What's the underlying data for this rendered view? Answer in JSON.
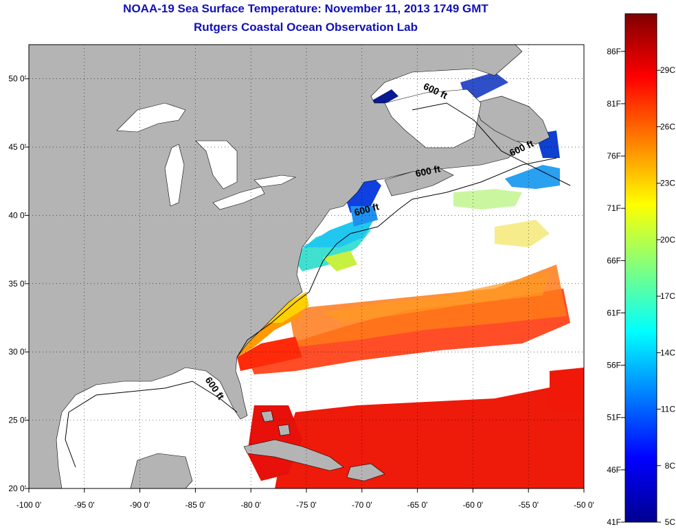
{
  "title": "NOAA-19 Sea Surface Temperature:  November 11, 2013 1749 GMT",
  "subtitle": "Rutgers Coastal Ocean Observation Lab",
  "map": {
    "lon_range": [
      -100,
      -50
    ],
    "lat_range": [
      20,
      52.5
    ],
    "lon_ticks": [
      "-100 0'",
      "-95 0'",
      "-90 0'",
      "-85 0'",
      "-80 0'",
      "-75 0'",
      "-70 0'",
      "-65 0'",
      "-60 0'",
      "-55 0'",
      "-50 0'"
    ],
    "lon_tick_values": [
      -100,
      -95,
      -90,
      -85,
      -80,
      -75,
      -70,
      -65,
      -60,
      -55,
      -50
    ],
    "lat_ticks": [
      "20 0'",
      "25 0'",
      "30 0'",
      "35 0'",
      "40 0'",
      "45 0'",
      "50 0'"
    ],
    "lat_tick_values": [
      20,
      25,
      30,
      35,
      40,
      45,
      50
    ],
    "grid": "dotted",
    "land_color": "#b4b4b4",
    "cloud_color": "#ffffff",
    "isobath_label": "600 ft",
    "isobath_labels": [
      {
        "text": "600 ft",
        "lon": -63.5,
        "lat": 48.9
      },
      {
        "text": "600 ft",
        "lon": -55.5,
        "lat": 44.7
      },
      {
        "text": "600 ft",
        "lon": -64.0,
        "lat": 43.0
      },
      {
        "text": "600 ft",
        "lon": -69.5,
        "lat": 40.2
      },
      {
        "text": "600 ft",
        "lon": -83.5,
        "lat": 27.2
      }
    ]
  },
  "colorbar": {
    "min_c": 5,
    "max_c": 32,
    "f_labels": [
      "86F",
      "81F",
      "76F",
      "71F",
      "66F",
      "61F",
      "56F",
      "51F",
      "46F",
      "41F"
    ],
    "f_values": [
      86,
      81,
      76,
      71,
      66,
      61,
      56,
      51,
      46,
      41
    ],
    "c_labels": [
      "29C",
      "26C",
      "23C",
      "20C",
      "17C",
      "14C",
      "11C",
      "8C",
      "5C"
    ],
    "c_values": [
      29,
      26,
      23,
      20,
      17,
      14,
      11,
      8,
      5
    ],
    "colormap": "jet"
  }
}
